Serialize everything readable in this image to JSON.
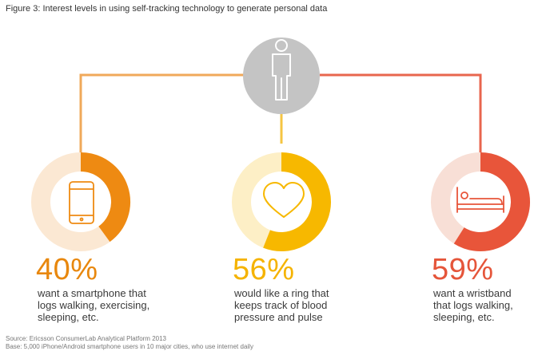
{
  "title": "Figure 3: Interest levels in using self-tracking technology to generate personal data",
  "colors": {
    "connector_left": "#f0a95a",
    "connector_center": "#f5c542",
    "connector_right": "#e8664e",
    "person_circle": "#c4c4c4",
    "series": [
      "#ee8a12",
      "#f7b800",
      "#e8553a"
    ],
    "track": [
      "#fbe8d3",
      "#fdefc6",
      "#f8dfd6"
    ]
  },
  "person_icon": "person-icon",
  "chart_data": {
    "type": "pie",
    "items": [
      {
        "value": 40,
        "label": "40%",
        "description": "want a smartphone that\nlogs walking, exercising,\nsleeping, etc.",
        "icon": "smartphone-icon",
        "color": "#ee8a12"
      },
      {
        "value": 56,
        "label": "56%",
        "description": "would like a ring that\nkeeps track of blood\npressure and pulse",
        "icon": "heart-icon",
        "color": "#f7b800"
      },
      {
        "value": 59,
        "label": "59%",
        "description": "want a wristband\nthat logs walking,\nsleeping, etc.",
        "icon": "bed-icon",
        "color": "#e8553a"
      }
    ]
  },
  "source": "Source: Ericsson ConsumerLab Analytical Platform 2013",
  "base": "Base: 5,000 iPhone/Android smartphone users in 10 major cities, who use internet daily"
}
